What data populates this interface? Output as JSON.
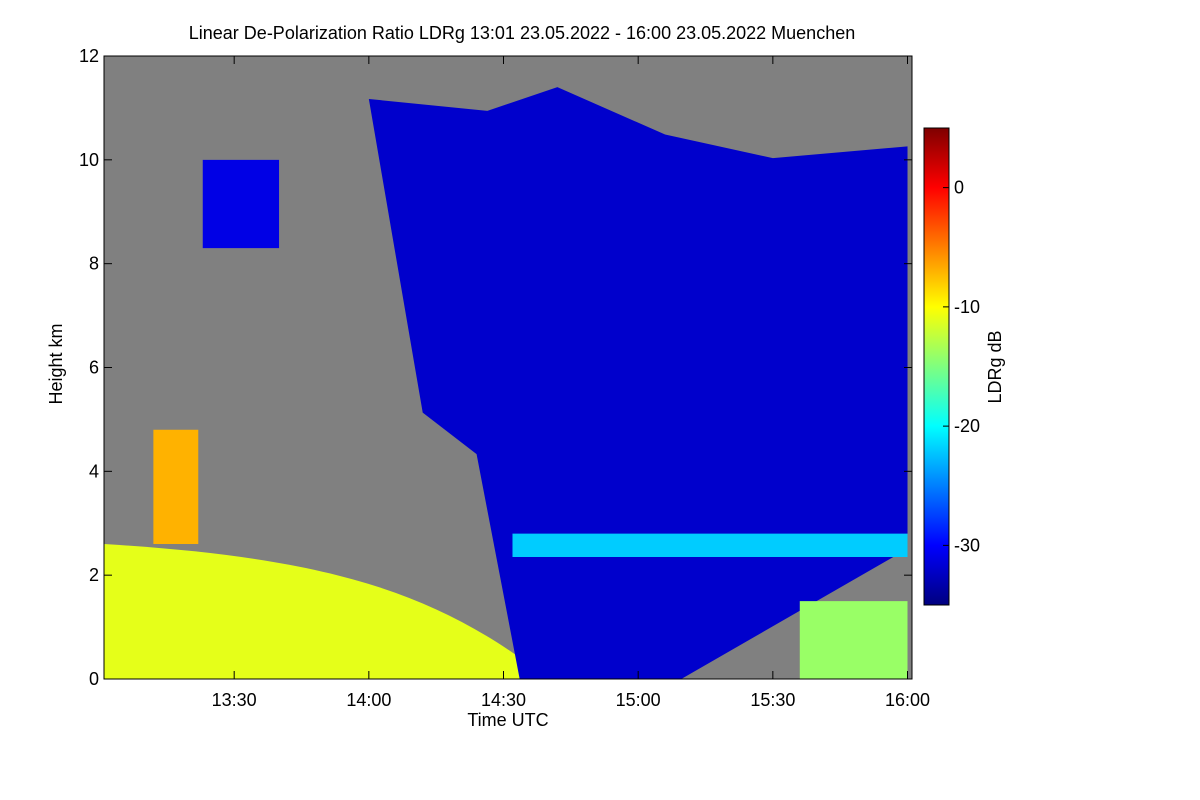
{
  "chart_data": {
    "type": "heatmap",
    "title": "Linear De-Polarization Ratio LDRg   13:01 23.05.2022 - 16:00 23.05.2022 Muenchen",
    "xlabel": "Time UTC",
    "ylabel": "Height km",
    "xlim": [
      "13:01",
      "16:01"
    ],
    "ylim": [
      0,
      12
    ],
    "x_ticks": [
      "13:30",
      "14:00",
      "14:30",
      "15:00",
      "15:30",
      "16:00"
    ],
    "y_ticks": [
      "0",
      "2",
      "4",
      "6",
      "8",
      "10",
      "12"
    ],
    "colorbar": {
      "label": "LDRg dB",
      "range": [
        -35,
        5
      ],
      "ticks": [
        "0",
        "-10",
        "-20",
        "-30"
      ],
      "colors": [
        "#00007f",
        "#0000ff",
        "#007fff",
        "#00ffff",
        "#7fff7f",
        "#ffff00",
        "#ff7f00",
        "#ff0000",
        "#7f0000"
      ]
    },
    "no_data_color": "#808080",
    "features": [
      {
        "type": "boundary_layer_aerosol",
        "time_range": [
          "13:01",
          "14:40"
        ],
        "height_km": [
          0,
          2.6
        ],
        "ldr_db": -11
      },
      {
        "type": "elevated_depolarizing_layer",
        "time_range": [
          "13:12",
          "13:22"
        ],
        "height_km": [
          2.6,
          4.8
        ],
        "ldr_db": -7
      },
      {
        "type": "ice_cloud",
        "time_range": [
          "13:23",
          "13:40"
        ],
        "height_km": [
          8.3,
          10.0
        ],
        "ldr_db": -31
      },
      {
        "type": "deep_cloud",
        "time_range": [
          "14:00",
          "16:00"
        ],
        "height_km": [
          0,
          11.4
        ],
        "ldr_db": -32
      },
      {
        "type": "melting_layer",
        "time_range": [
          "14:32",
          "16:00"
        ],
        "height_km": [
          2.35,
          2.8
        ],
        "ldr_db": -22
      },
      {
        "type": "boundary_layer_aerosol",
        "time_range": [
          "15:36",
          "16:00"
        ],
        "height_km": [
          0,
          1.5
        ],
        "ldr_db": -14
      }
    ]
  }
}
